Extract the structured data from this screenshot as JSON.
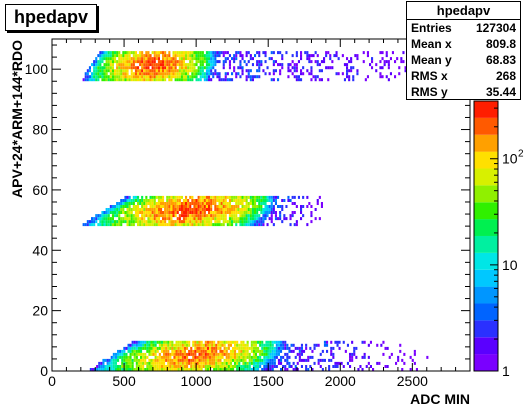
{
  "title": "hpedapv",
  "stats": {
    "name": "hpedapv",
    "rows": [
      {
        "label": "Entries",
        "value": "127304"
      },
      {
        "label": "Mean x",
        "value": "809.8"
      },
      {
        "label": "Mean y",
        "value": "68.83"
      },
      {
        "label": "RMS x",
        "value": "268"
      },
      {
        "label": "RMS y",
        "value": "35.44"
      }
    ]
  },
  "chart_data": {
    "type": "heatmap",
    "title": "hpedapv",
    "xlabel": "ADC MIN",
    "ylabel": "APV+24*ARM+144*RDO",
    "xlim": [
      0,
      2900
    ],
    "ylim": [
      0,
      110
    ],
    "xticks": [
      0,
      500,
      1000,
      1500,
      2000,
      2500
    ],
    "yticks": [
      0,
      20,
      40,
      60,
      80,
      100
    ],
    "zscale": "log",
    "zticks": [
      {
        "value": 1,
        "label": "1",
        "exp": ""
      },
      {
        "value": 10,
        "label": "10",
        "exp": ""
      },
      {
        "value": 100,
        "label": "10",
        "exp": "2"
      }
    ],
    "zlim": [
      1,
      350
    ],
    "palette": [
      "#7a00ff",
      "#5a00ff",
      "#2a30ff",
      "#0064ff",
      "#0096ff",
      "#00c8ff",
      "#00e6e6",
      "#00f0a0",
      "#00f050",
      "#30f000",
      "#90f000",
      "#d8f000",
      "#ffe000",
      "#ffa000",
      "#ff5a00",
      "#ff1e00"
    ],
    "bands": [
      {
        "y_range": [
          0,
          10
        ],
        "x_core": [
          250,
          1500
        ],
        "x_tail": 2600,
        "y_slope": 0.006,
        "peak": 250
      },
      {
        "y_range": [
          48,
          58
        ],
        "x_core": [
          200,
          1450
        ],
        "x_tail": 1900,
        "y_slope": 0.006,
        "peak": 300
      },
      {
        "y_range": [
          96,
          106
        ],
        "x_core": [
          200,
          1100
        ],
        "x_tail": 2900,
        "y_slope": 0.0,
        "peak": 300
      }
    ]
  }
}
